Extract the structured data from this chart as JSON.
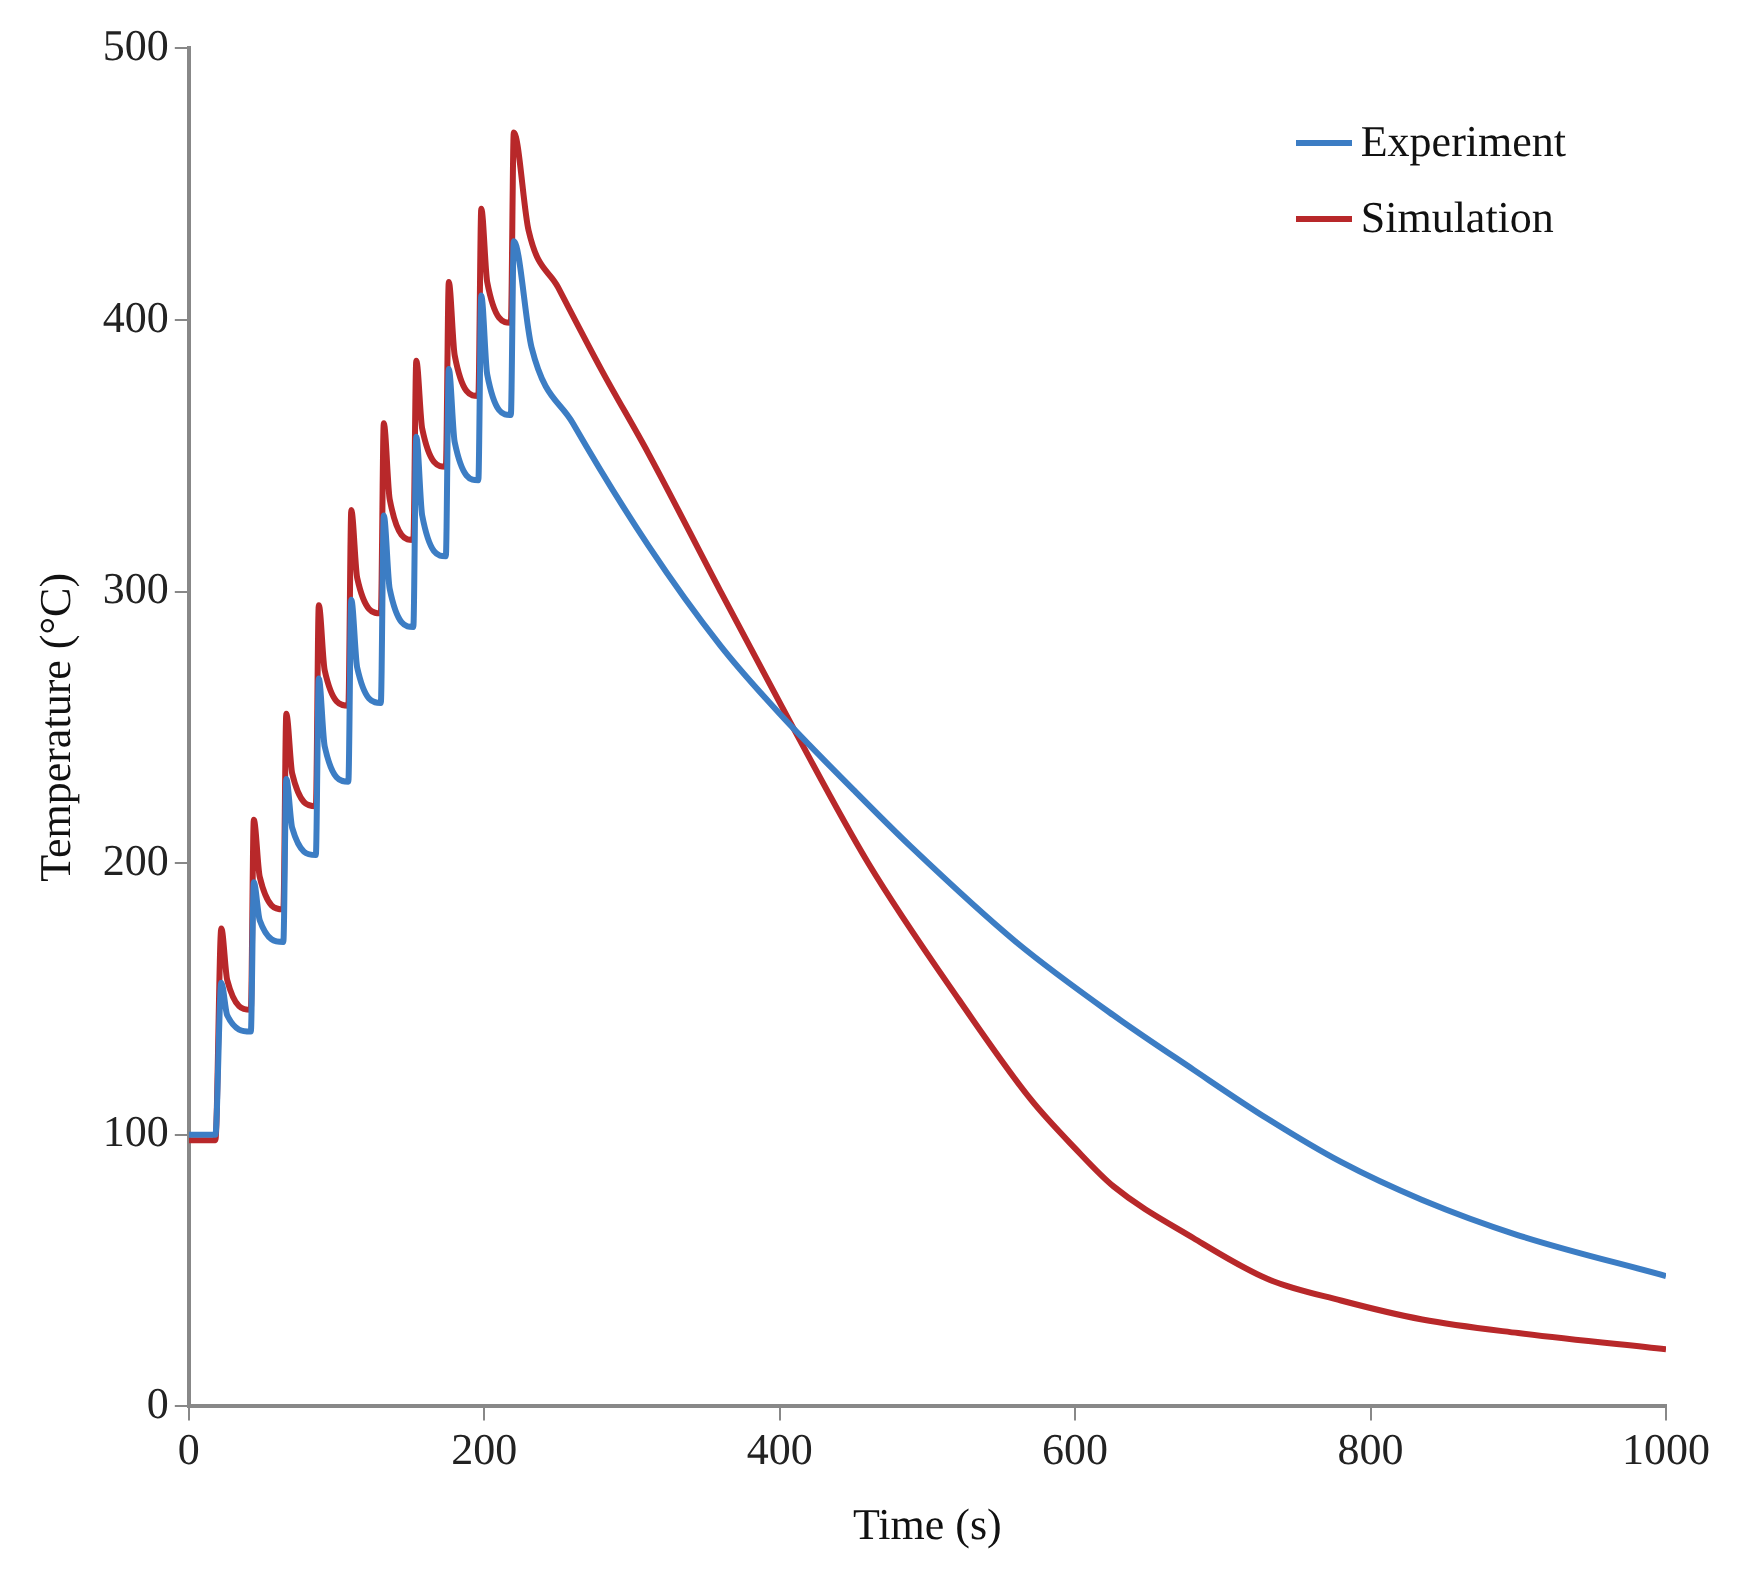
{
  "chart_data": {
    "type": "line",
    "xlabel": "Time (s)",
    "ylabel": "Temperature (°C)",
    "xlim": [
      0,
      1000
    ],
    "xticks": [
      0,
      200,
      400,
      600,
      800,
      1000
    ],
    "ylim": [
      0,
      500
    ],
    "yticks": [
      0,
      100,
      200,
      300,
      400,
      500
    ],
    "grid": false,
    "legend": "top right",
    "marker": "none",
    "line_style": "solid",
    "series": [
      {
        "name": "Experiment",
        "color": "#3c7dc4",
        "x": [
          0,
          18,
          22,
          26,
          42,
          44,
          48,
          64,
          66,
          70,
          86,
          88,
          92,
          108,
          110,
          114,
          130,
          132,
          136,
          152,
          154,
          158,
          174,
          176,
          180,
          196,
          198,
          202,
          218,
          220,
          232,
          260,
          311,
          360,
          400,
          450,
          489,
          560,
          626,
          680,
          730,
          780,
          835,
          900,
          1000
        ],
        "values": [
          100,
          100,
          156,
          144,
          138,
          193,
          179,
          171,
          231,
          213,
          203,
          268,
          243,
          230,
          297,
          272,
          259,
          328,
          301,
          287,
          357,
          328,
          313,
          382,
          355,
          341,
          409,
          380,
          365,
          429,
          390,
          362,
          317,
          280,
          255,
          227,
          206,
          171,
          144,
          124,
          106,
          90,
          76,
          63,
          48
        ]
      },
      {
        "name": "Simulation",
        "color": "#b8282a",
        "x": [
          0,
          18,
          22,
          26,
          42,
          44,
          48,
          64,
          66,
          70,
          86,
          88,
          92,
          108,
          110,
          114,
          130,
          132,
          136,
          152,
          154,
          158,
          174,
          176,
          180,
          196,
          198,
          202,
          218,
          220,
          230,
          250,
          280,
          311,
          360,
          408,
          460,
          521,
          570,
          600,
          626,
          680,
          730,
          780,
          835,
          900,
          1000
        ],
        "values": [
          98,
          98,
          176,
          157,
          146,
          216,
          195,
          183,
          255,
          233,
          221,
          295,
          271,
          258,
          330,
          305,
          292,
          362,
          334,
          319,
          385,
          360,
          346,
          414,
          387,
          372,
          441,
          414,
          399,
          469,
          433,
          412,
          381,
          351,
          300,
          251,
          200,
          150,
          113,
          95,
          81,
          62,
          47,
          39,
          32,
          27,
          21
        ]
      }
    ]
  }
}
